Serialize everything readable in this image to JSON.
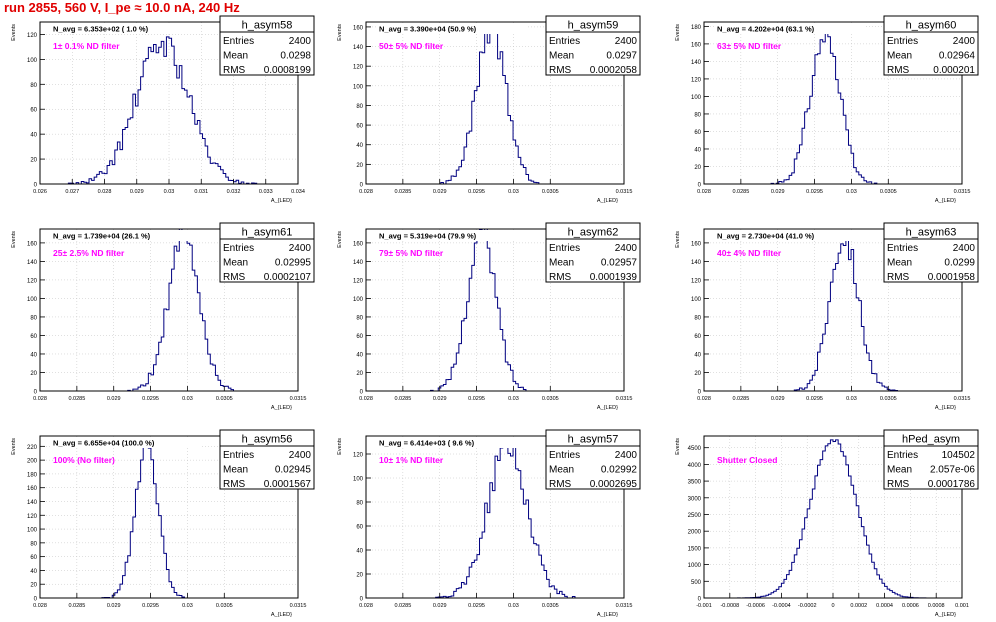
{
  "run_title": "run 2855,   560 V, I_pe ≈ 10.0 nA, 240 Hz",
  "colors": {
    "title": "#e00000",
    "filter_label": "#ff00ff",
    "hist_line": "#000080",
    "frame": "#000000",
    "grid": "#c0c0c0"
  },
  "axis_labels": {
    "y": "Events",
    "x": "A_{LED}"
  },
  "stats_labels": {
    "entries": "Entries",
    "mean": "Mean",
    "rms": "RMS"
  },
  "chart_data": [
    {
      "type": "histogram",
      "name": "h_asym58",
      "navg": "N_avg = 6.353e+02 ( 1.0 %)",
      "filter": "1± 0.1% ND filter",
      "entries": "2400",
      "mean": "0.0298",
      "rms": "0.0008199",
      "xlim": [
        0.026,
        0.034
      ],
      "xticks": [
        "0.026",
        "0.027",
        "0.028",
        "0.029",
        "0.03",
        "0.031",
        "0.032",
        "0.033",
        "0.034"
      ],
      "yticks": [
        0,
        20,
        40,
        60,
        80,
        100,
        120
      ],
      "ylim": [
        0,
        130
      ],
      "grid": true,
      "mu": 0.0298,
      "sigma": 0.00082,
      "peak": 113,
      "nbins": 100,
      "seed": 58
    },
    {
      "type": "histogram",
      "name": "h_asym59",
      "navg": "N_avg = 3.390e+04 (50.9 %)",
      "filter": "50± 5% ND filter",
      "entries": "2400",
      "mean": "0.0297",
      "rms": "0.0002058",
      "xlim": [
        0.028,
        0.0315
      ],
      "xticks": [
        "0.028",
        "0.0285",
        "0.029",
        "0.0295",
        "0.03",
        "0.0305",
        "0.0315"
      ],
      "yticks": [
        0,
        20,
        40,
        60,
        80,
        100,
        120,
        140,
        160
      ],
      "ylim": [
        0,
        165
      ],
      "grid": true,
      "mu": 0.0297,
      "sigma": 0.000206,
      "peak": 158,
      "nbins": 100,
      "seed": 59
    },
    {
      "type": "histogram",
      "name": "h_asym60",
      "navg": "N_avg = 4.202e+04 (63.1 %)",
      "filter": "63± 5% ND filter",
      "entries": "2400",
      "mean": "0.02964",
      "rms": "0.000201",
      "xlim": [
        0.028,
        0.0315
      ],
      "xticks": [
        "0.028",
        "0.0285",
        "0.029",
        "0.0295",
        "0.03",
        "0.0305",
        "0.0315"
      ],
      "yticks": [
        0,
        20,
        40,
        60,
        80,
        100,
        120,
        140,
        160,
        180
      ],
      "ylim": [
        0,
        185
      ],
      "grid": true,
      "mu": 0.02964,
      "sigma": 0.000201,
      "peak": 172,
      "nbins": 100,
      "seed": 60
    },
    {
      "type": "histogram",
      "name": "h_asym61",
      "navg": "N_avg = 1.739e+04 (26.1 %)",
      "filter": "25± 2.5% ND filter",
      "entries": "2400",
      "mean": "0.02995",
      "rms": "0.0002107",
      "xlim": [
        0.028,
        0.0315
      ],
      "xticks": [
        "0.028",
        "0.0285",
        "0.029",
        "0.0295",
        "0.03",
        "0.0305",
        "0.0315"
      ],
      "yticks": [
        0,
        20,
        40,
        60,
        80,
        100,
        120,
        140,
        160
      ],
      "ylim": [
        0,
        175
      ],
      "grid": true,
      "mu": 0.02995,
      "sigma": 0.000211,
      "peak": 166,
      "nbins": 100,
      "seed": 61
    },
    {
      "type": "histogram",
      "name": "h_asym62",
      "navg": "N_avg = 5.319e+04 (79.9 %)",
      "filter": "79± 5% ND filter",
      "entries": "2400",
      "mean": "0.02957",
      "rms": "0.0001939",
      "xlim": [
        0.028,
        0.0315
      ],
      "xticks": [
        "0.028",
        "0.0285",
        "0.029",
        "0.0295",
        "0.03",
        "0.0305",
        "0.0315"
      ],
      "yticks": [
        0,
        20,
        40,
        60,
        80,
        100,
        120,
        140,
        160
      ],
      "ylim": [
        0,
        175
      ],
      "grid": true,
      "mu": 0.02957,
      "sigma": 0.000194,
      "peak": 170,
      "nbins": 100,
      "seed": 62
    },
    {
      "type": "histogram",
      "name": "h_asym63",
      "navg": "N_avg = 2.730e+04 (41.0 %)",
      "filter": "40± 4% ND filter",
      "entries": "2400",
      "mean": "0.0299",
      "rms": "0.0001958",
      "xlim": [
        0.028,
        0.0315
      ],
      "xticks": [
        "0.028",
        "0.0285",
        "0.029",
        "0.0295",
        "0.03",
        "0.0305",
        "0.0315"
      ],
      "yticks": [
        0,
        20,
        40,
        60,
        80,
        100,
        120,
        140,
        160
      ],
      "ylim": [
        0,
        175
      ],
      "grid": true,
      "mu": 0.0299,
      "sigma": 0.000196,
      "peak": 168,
      "nbins": 100,
      "seed": 63
    },
    {
      "type": "histogram",
      "name": "h_asym56",
      "navg": "N_avg = 6.655e+04 (100.0 %)",
      "filter": "100% (No filter)",
      "entries": "2400",
      "mean": "0.02945",
      "rms": "0.0001567",
      "xlim": [
        0.028,
        0.0315
      ],
      "xticks": [
        "0.028",
        "0.0285",
        "0.029",
        "0.0295",
        "0.03",
        "0.0305",
        "0.0315"
      ],
      "yticks": [
        0,
        20,
        40,
        60,
        80,
        100,
        120,
        140,
        160,
        180,
        200,
        220
      ],
      "ylim": [
        0,
        235
      ],
      "grid": true,
      "mu": 0.02945,
      "sigma": 0.000157,
      "peak": 222,
      "nbins": 100,
      "seed": 56
    },
    {
      "type": "histogram",
      "name": "h_asym57",
      "navg": "N_avg = 6.414e+03 ( 9.6 %)",
      "filter": "10± 1% ND filter",
      "entries": "2400",
      "mean": "0.02992",
      "rms": "0.0002695",
      "xlim": [
        0.028,
        0.0315
      ],
      "xticks": [
        "0.028",
        "0.0285",
        "0.029",
        "0.0295",
        "0.03",
        "0.0305",
        "0.0315"
      ],
      "yticks": [
        0,
        20,
        40,
        60,
        80,
        100,
        120
      ],
      "ylim": [
        0,
        135
      ],
      "grid": true,
      "mu": 0.02992,
      "sigma": 0.00027,
      "peak": 126,
      "nbins": 100,
      "seed": 57
    },
    {
      "type": "histogram",
      "name": "hPed_asym",
      "navg": "",
      "filter": "Shutter Closed",
      "entries": "104502",
      "mean": "2.057e-06",
      "rms": "0.0001786",
      "xlim": [
        -0.001,
        0.001
      ],
      "xticks": [
        "-0.001",
        "-0.0008",
        "-0.0006",
        "-0.0004",
        "-0.0002",
        "0",
        "0.0002",
        "0.0004",
        "0.0006",
        "0.0008",
        "0.001"
      ],
      "yticks": [
        0,
        500,
        1000,
        1500,
        2000,
        2500,
        3000,
        3500,
        4000,
        4500
      ],
      "ylim": [
        0,
        4850
      ],
      "grid": true,
      "mu": 2e-06,
      "sigma": 0.000179,
      "peak": 4760,
      "nbins": 100,
      "seed": 99
    }
  ]
}
